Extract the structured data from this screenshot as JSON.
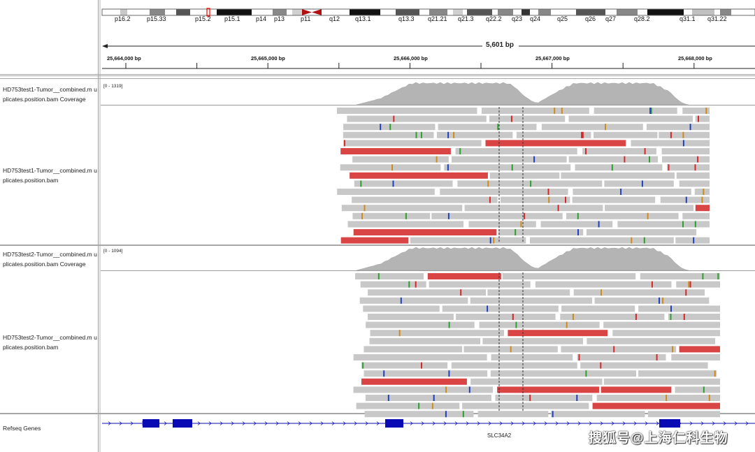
{
  "ideogram": {
    "bands": [
      "p16.2",
      "p15.33",
      "p15.2",
      "p15.1",
      "p14",
      "p13",
      "p11",
      "q12",
      "q13.1",
      "q13.3",
      "q21.21",
      "q21.3",
      "q22.2",
      "q23",
      "q24",
      "q25",
      "q26",
      "q27",
      "q28.2",
      "q31.1",
      "q31.22"
    ]
  },
  "ruler": {
    "range_label": "5,601 bp",
    "ticks": [
      "25,664,000 bp",
      "25,665,000 bp",
      "25,666,000 bp",
      "25,667,000 bp",
      "25,668,000 bp"
    ]
  },
  "tracks": {
    "t1_coverage_name": "HD753test1-Tumor__combined.m uplicates.position.bam Coverage",
    "t1_scale": "[0 - 1319]",
    "t1_alignment_name": "HD753test1-Tumor__combined.m uplicates.position.bam",
    "t2_coverage_name": "HD753test2-Tumor__combined.m uplicates.position.bam Coverage",
    "t2_scale": "[0 - 1094]",
    "t2_alignment_name": "HD753test2-Tumor__combined.m uplicates.position.bam",
    "refseq_name": "Refseq Genes",
    "gene": "SLC34A2"
  },
  "watermark": "搜狐号@上海仁科生物",
  "colors": {
    "read": "#c8c8c8",
    "read_reverse_strand_flag": "#d94545",
    "coverage": "#b4b4b4",
    "gene_feature": "#0a0ab4",
    "mismatch_a": "#2ca02c",
    "mismatch_c": "#1f3fbf",
    "mismatch_g": "#d08a1a",
    "mismatch_t": "#d62728"
  }
}
